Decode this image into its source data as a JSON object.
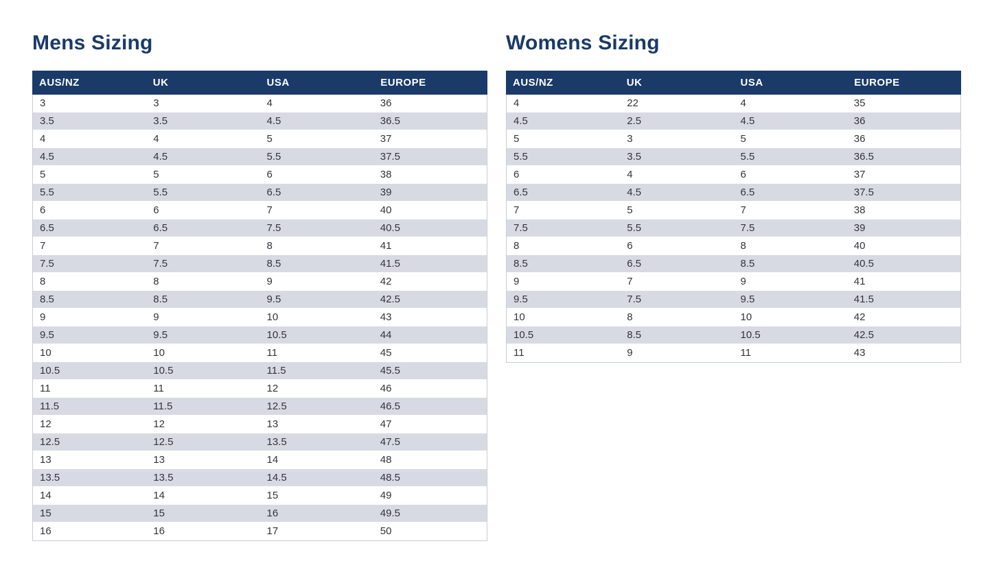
{
  "colors": {
    "navy": "#1a3a68",
    "row_alt": "#d8dae3",
    "cell_text": "#33343a",
    "table_border": "#c8ccd6",
    "header_text": "#ffffff",
    "page_bg": "#ffffff"
  },
  "mens": {
    "title": "Mens Sizing",
    "columns": [
      "AUS/NZ",
      "UK",
      "USA",
      "EUROPE"
    ],
    "rows": [
      [
        "3",
        "3",
        "4",
        "36"
      ],
      [
        "3.5",
        "3.5",
        "4.5",
        "36.5"
      ],
      [
        "4",
        "4",
        "5",
        "37"
      ],
      [
        "4.5",
        "4.5",
        "5.5",
        "37.5"
      ],
      [
        "5",
        "5",
        "6",
        "38"
      ],
      [
        "5.5",
        "5.5",
        "6.5",
        "39"
      ],
      [
        "6",
        "6",
        "7",
        "40"
      ],
      [
        "6.5",
        "6.5",
        "7.5",
        "40.5"
      ],
      [
        "7",
        "7",
        "8",
        "41"
      ],
      [
        "7.5",
        "7.5",
        "8.5",
        "41.5"
      ],
      [
        "8",
        "8",
        "9",
        "42"
      ],
      [
        "8.5",
        "8.5",
        "9.5",
        "42.5"
      ],
      [
        "9",
        "9",
        "10",
        "43"
      ],
      [
        "9.5",
        "9.5",
        "10.5",
        "44"
      ],
      [
        "10",
        "10",
        "11",
        "45"
      ],
      [
        "10.5",
        "10.5",
        "11.5",
        "45.5"
      ],
      [
        "11",
        "11",
        "12",
        "46"
      ],
      [
        "11.5",
        "11.5",
        "12.5",
        "46.5"
      ],
      [
        "12",
        "12",
        "13",
        "47"
      ],
      [
        "12.5",
        "12.5",
        "13.5",
        "47.5"
      ],
      [
        "13",
        "13",
        "14",
        "48"
      ],
      [
        "13.5",
        "13.5",
        "14.5",
        "48.5"
      ],
      [
        "14",
        "14",
        "15",
        "49"
      ],
      [
        "15",
        "15",
        "16",
        "49.5"
      ],
      [
        "16",
        "16",
        "17",
        "50"
      ]
    ]
  },
  "womens": {
    "title": "Womens Sizing",
    "columns": [
      "AUS/NZ",
      "UK",
      "USA",
      "EUROPE"
    ],
    "rows": [
      [
        "4",
        "22",
        "4",
        "35"
      ],
      [
        "4.5",
        "2.5",
        "4.5",
        "36"
      ],
      [
        "5",
        "3",
        "5",
        "36"
      ],
      [
        "5.5",
        "3.5",
        "5.5",
        "36.5"
      ],
      [
        "6",
        "4",
        "6",
        "37"
      ],
      [
        "6.5",
        "4.5",
        "6.5",
        "37.5"
      ],
      [
        "7",
        "5",
        "7",
        "38"
      ],
      [
        "7.5",
        "5.5",
        "7.5",
        "39"
      ],
      [
        "8",
        "6",
        "8",
        "40"
      ],
      [
        "8.5",
        "6.5",
        "8.5",
        "40.5"
      ],
      [
        "9",
        "7",
        "9",
        "41"
      ],
      [
        "9.5",
        "7.5",
        "9.5",
        "41.5"
      ],
      [
        "10",
        "8",
        "10",
        "42"
      ],
      [
        "10.5",
        "8.5",
        "10.5",
        "42.5"
      ],
      [
        "11",
        "9",
        "11",
        "43"
      ]
    ]
  }
}
